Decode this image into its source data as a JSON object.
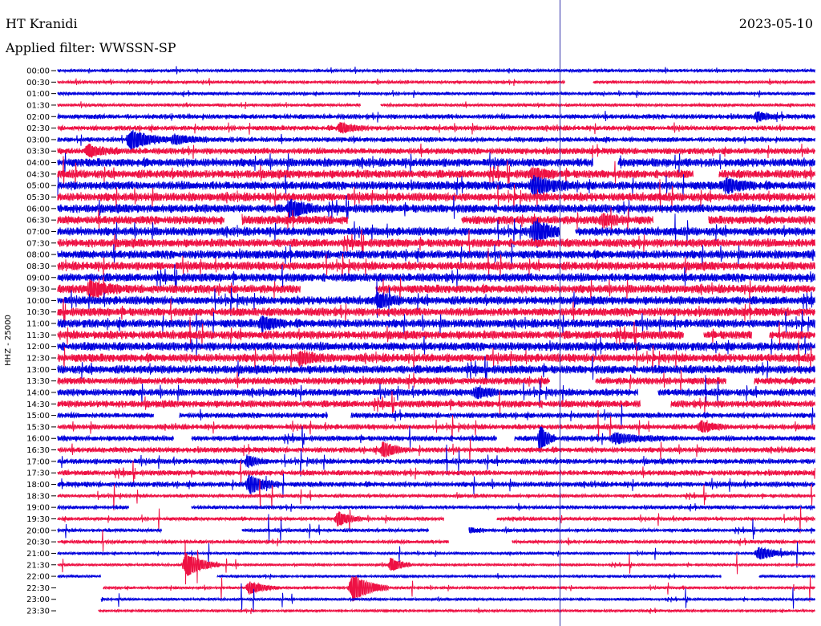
{
  "header": {
    "station": "HT Kranidi",
    "date": "2023-05-10",
    "filter_prefix": "Applied filter:",
    "filter_name": "WWSSN-SP"
  },
  "chart_data": {
    "type": "line",
    "title": "HT Kranidi",
    "subtitle": "Applied filter: WWSSN-SP",
    "date": "2023-05-10",
    "ylabel": "HHZ - 25000",
    "xlabel": "",
    "y_tick_labels": [
      "00:00",
      "00:30",
      "01:00",
      "01:30",
      "02:00",
      "02:30",
      "03:00",
      "03:30",
      "04:00",
      "04:30",
      "05:00",
      "05:30",
      "06:00",
      "06:30",
      "07:00",
      "07:30",
      "08:00",
      "08:30",
      "09:00",
      "09:30",
      "10:00",
      "10:30",
      "11:00",
      "11:30",
      "12:00",
      "12:30",
      "13:00",
      "13:30",
      "14:00",
      "14:30",
      "15:00",
      "15:30",
      "16:00",
      "16:30",
      "17:00",
      "17:30",
      "18:00",
      "18:30",
      "19:00",
      "19:30",
      "20:00",
      "20:30",
      "21:00",
      "21:30",
      "22:00",
      "22:30",
      "23:00",
      "23:30"
    ],
    "row_minutes": 30,
    "row_colors": [
      "#0000dd",
      "#ee1144"
    ],
    "marker_line_color": "#3333aa",
    "gaps": [
      {
        "row": "00:30",
        "from_min": 20.1,
        "to_min": 21.2
      },
      {
        "row": "01:30",
        "from_min": 12.0,
        "to_min": 12.8
      },
      {
        "row": "04:00",
        "from_min": 21.2,
        "to_min": 22.2
      },
      {
        "row": "04:30",
        "from_min": 25.2,
        "to_min": 26.2
      },
      {
        "row": "06:30",
        "from_min": 6.6,
        "to_min": 7.3
      },
      {
        "row": "06:30",
        "from_min": 11.5,
        "to_min": 16.0
      },
      {
        "row": "06:30",
        "from_min": 23.6,
        "to_min": 25.8
      },
      {
        "row": "07:00",
        "from_min": 19.9,
        "to_min": 20.5
      },
      {
        "row": "09:30",
        "from_min": 9.6,
        "to_min": 12.6
      },
      {
        "row": "11:30",
        "from_min": 24.8,
        "to_min": 25.6
      },
      {
        "row": "11:30",
        "from_min": 27.5,
        "to_min": 28.2
      },
      {
        "row": "13:30",
        "from_min": 19.5,
        "to_min": 21.3
      },
      {
        "row": "13:30",
        "from_min": 26.5,
        "to_min": 27.6
      },
      {
        "row": "14:00",
        "from_min": 23.0,
        "to_min": 23.8
      },
      {
        "row": "14:30",
        "from_min": 23.1,
        "to_min": 24.3
      },
      {
        "row": "15:00",
        "from_min": 3.8,
        "to_min": 4.8
      },
      {
        "row": "15:00",
        "from_min": 10.7,
        "to_min": 11.6
      },
      {
        "row": "16:00",
        "from_min": 4.6,
        "to_min": 5.3
      },
      {
        "row": "16:00",
        "from_min": 17.4,
        "to_min": 18.1
      },
      {
        "row": "19:00",
        "from_min": 2.8,
        "to_min": 5.3
      },
      {
        "row": "19:30",
        "from_min": 15.3,
        "to_min": 17.4
      },
      {
        "row": "20:00",
        "from_min": 4.1,
        "to_min": 7.3
      },
      {
        "row": "20:00",
        "from_min": 14.7,
        "to_min": 16.3
      },
      {
        "row": "20:30",
        "from_min": 15.5,
        "to_min": 18.0
      },
      {
        "row": "22:00",
        "from_min": 1.7,
        "to_min": 6.3
      },
      {
        "row": "22:00",
        "from_min": 26.3,
        "to_min": 27.8
      },
      {
        "row": "22:30",
        "from_min": 0.0,
        "to_min": 1.8
      },
      {
        "row": "23:00",
        "from_min": 0.0,
        "to_min": 1.7
      },
      {
        "row": "23:30",
        "from_min": 0.0,
        "to_min": 1.6
      }
    ],
    "events": [
      {
        "row": "02:30",
        "at_min": 11.2,
        "amp": 6,
        "duration_min": 1.0
      },
      {
        "row": "03:00",
        "at_min": 2.9,
        "amp": 11,
        "duration_min": 1.5
      },
      {
        "row": "03:00",
        "at_min": 4.6,
        "amp": 5,
        "duration_min": 1.5
      },
      {
        "row": "03:30",
        "at_min": 1.2,
        "amp": 6,
        "duration_min": 1.2
      },
      {
        "row": "04:30",
        "at_min": 18.8,
        "amp": 5,
        "duration_min": 1.0
      },
      {
        "row": "05:00",
        "at_min": 18.9,
        "amp": 9,
        "duration_min": 1.5
      },
      {
        "row": "06:00",
        "at_min": 9.2,
        "amp": 9,
        "duration_min": 1.2
      },
      {
        "row": "06:30",
        "at_min": 21.6,
        "amp": 6,
        "duration_min": 1.0
      },
      {
        "row": "07:00",
        "at_min": 18.9,
        "amp": 10,
        "duration_min": 1.5
      },
      {
        "row": "09:30",
        "at_min": 1.3,
        "amp": 8,
        "duration_min": 1.2
      },
      {
        "row": "10:00",
        "at_min": 12.7,
        "amp": 7,
        "duration_min": 1.0
      },
      {
        "row": "11:00",
        "at_min": 8.1,
        "amp": 7,
        "duration_min": 1.0
      },
      {
        "row": "12:30",
        "at_min": 9.6,
        "amp": 7,
        "duration_min": 1.0
      },
      {
        "row": "14:00",
        "at_min": 16.6,
        "amp": 6,
        "duration_min": 1.0
      },
      {
        "row": "15:30",
        "at_min": 25.5,
        "amp": 6,
        "duration_min": 1.0
      },
      {
        "row": "16:00",
        "at_min": 19.1,
        "amp": 16,
        "duration_min": 0.6
      },
      {
        "row": "16:00",
        "at_min": 22.1,
        "amp": 5,
        "duration_min": 2.0
      },
      {
        "row": "16:30",
        "at_min": 12.9,
        "amp": 9,
        "duration_min": 0.9
      },
      {
        "row": "17:00",
        "at_min": 7.5,
        "amp": 6,
        "duration_min": 0.8
      },
      {
        "row": "18:00",
        "at_min": 7.6,
        "amp": 10,
        "duration_min": 1.2
      },
      {
        "row": "19:30",
        "at_min": 11.1,
        "amp": 8,
        "duration_min": 1.0
      },
      {
        "row": "20:00",
        "at_min": 16.1,
        "amp": 5,
        "duration_min": 0.8
      },
      {
        "row": "21:30",
        "at_min": 5.1,
        "amp": 14,
        "duration_min": 1.3
      },
      {
        "row": "21:30",
        "at_min": 13.2,
        "amp": 8,
        "duration_min": 0.8
      },
      {
        "row": "22:30",
        "at_min": 7.6,
        "amp": 7,
        "duration_min": 1.2
      },
      {
        "row": "22:30",
        "at_min": 11.7,
        "amp": 16,
        "duration_min": 1.4
      },
      {
        "row": "21:00",
        "at_min": 27.8,
        "amp": 7,
        "duration_min": 1.5
      },
      {
        "row": "02:00",
        "at_min": 27.7,
        "amp": 5,
        "duration_min": 0.8
      },
      {
        "row": "05:00",
        "at_min": 26.5,
        "amp": 7,
        "duration_min": 1.2
      }
    ],
    "marker_minute": 19.9
  }
}
